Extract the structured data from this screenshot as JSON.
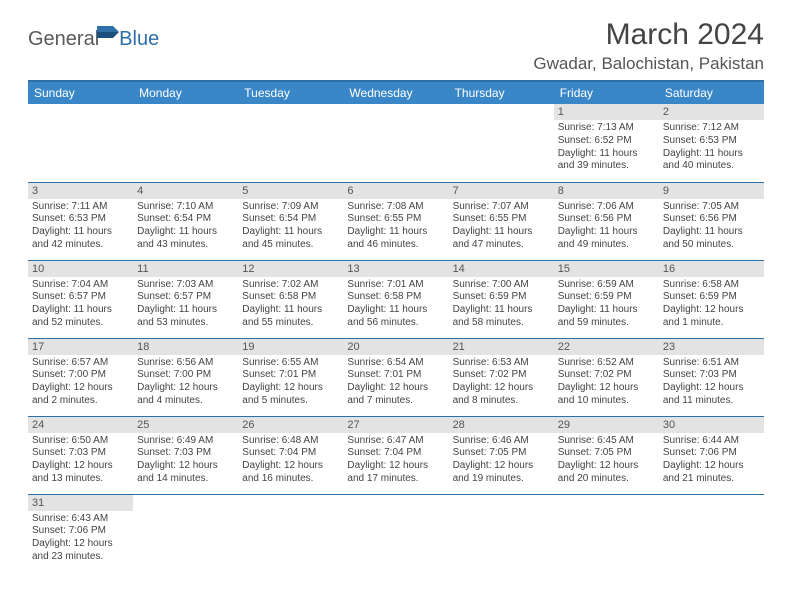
{
  "logo": {
    "part1": "General",
    "part2": "Blue"
  },
  "title": "March 2024",
  "location": "Gwadar, Balochistan, Pakistan",
  "colors": {
    "header_bg": "#3a87c8",
    "header_border": "#2f6fa8",
    "daynum_bg": "#e3e3e3",
    "text": "#444444",
    "logo_gray": "#5a5a5a",
    "logo_blue": "#2f6fa8"
  },
  "table": {
    "columns": [
      "Sunday",
      "Monday",
      "Tuesday",
      "Wednesday",
      "Thursday",
      "Friday",
      "Saturday"
    ],
    "column_width_pct": 14.28,
    "header_fontsize": 12,
    "cell_fontsize": 10,
    "rows": [
      [
        {
          "day": "",
          "sunrise": "",
          "sunset": "",
          "daylight": ""
        },
        {
          "day": "",
          "sunrise": "",
          "sunset": "",
          "daylight": ""
        },
        {
          "day": "",
          "sunrise": "",
          "sunset": "",
          "daylight": ""
        },
        {
          "day": "",
          "sunrise": "",
          "sunset": "",
          "daylight": ""
        },
        {
          "day": "",
          "sunrise": "",
          "sunset": "",
          "daylight": ""
        },
        {
          "day": "1",
          "sunrise": "Sunrise: 7:13 AM",
          "sunset": "Sunset: 6:52 PM",
          "daylight": "Daylight: 11 hours and 39 minutes."
        },
        {
          "day": "2",
          "sunrise": "Sunrise: 7:12 AM",
          "sunset": "Sunset: 6:53 PM",
          "daylight": "Daylight: 11 hours and 40 minutes."
        }
      ],
      [
        {
          "day": "3",
          "sunrise": "Sunrise: 7:11 AM",
          "sunset": "Sunset: 6:53 PM",
          "daylight": "Daylight: 11 hours and 42 minutes."
        },
        {
          "day": "4",
          "sunrise": "Sunrise: 7:10 AM",
          "sunset": "Sunset: 6:54 PM",
          "daylight": "Daylight: 11 hours and 43 minutes."
        },
        {
          "day": "5",
          "sunrise": "Sunrise: 7:09 AM",
          "sunset": "Sunset: 6:54 PM",
          "daylight": "Daylight: 11 hours and 45 minutes."
        },
        {
          "day": "6",
          "sunrise": "Sunrise: 7:08 AM",
          "sunset": "Sunset: 6:55 PM",
          "daylight": "Daylight: 11 hours and 46 minutes."
        },
        {
          "day": "7",
          "sunrise": "Sunrise: 7:07 AM",
          "sunset": "Sunset: 6:55 PM",
          "daylight": "Daylight: 11 hours and 47 minutes."
        },
        {
          "day": "8",
          "sunrise": "Sunrise: 7:06 AM",
          "sunset": "Sunset: 6:56 PM",
          "daylight": "Daylight: 11 hours and 49 minutes."
        },
        {
          "day": "9",
          "sunrise": "Sunrise: 7:05 AM",
          "sunset": "Sunset: 6:56 PM",
          "daylight": "Daylight: 11 hours and 50 minutes."
        }
      ],
      [
        {
          "day": "10",
          "sunrise": "Sunrise: 7:04 AM",
          "sunset": "Sunset: 6:57 PM",
          "daylight": "Daylight: 11 hours and 52 minutes."
        },
        {
          "day": "11",
          "sunrise": "Sunrise: 7:03 AM",
          "sunset": "Sunset: 6:57 PM",
          "daylight": "Daylight: 11 hours and 53 minutes."
        },
        {
          "day": "12",
          "sunrise": "Sunrise: 7:02 AM",
          "sunset": "Sunset: 6:58 PM",
          "daylight": "Daylight: 11 hours and 55 minutes."
        },
        {
          "day": "13",
          "sunrise": "Sunrise: 7:01 AM",
          "sunset": "Sunset: 6:58 PM",
          "daylight": "Daylight: 11 hours and 56 minutes."
        },
        {
          "day": "14",
          "sunrise": "Sunrise: 7:00 AM",
          "sunset": "Sunset: 6:59 PM",
          "daylight": "Daylight: 11 hours and 58 minutes."
        },
        {
          "day": "15",
          "sunrise": "Sunrise: 6:59 AM",
          "sunset": "Sunset: 6:59 PM",
          "daylight": "Daylight: 11 hours and 59 minutes."
        },
        {
          "day": "16",
          "sunrise": "Sunrise: 6:58 AM",
          "sunset": "Sunset: 6:59 PM",
          "daylight": "Daylight: 12 hours and 1 minute."
        }
      ],
      [
        {
          "day": "17",
          "sunrise": "Sunrise: 6:57 AM",
          "sunset": "Sunset: 7:00 PM",
          "daylight": "Daylight: 12 hours and 2 minutes."
        },
        {
          "day": "18",
          "sunrise": "Sunrise: 6:56 AM",
          "sunset": "Sunset: 7:00 PM",
          "daylight": "Daylight: 12 hours and 4 minutes."
        },
        {
          "day": "19",
          "sunrise": "Sunrise: 6:55 AM",
          "sunset": "Sunset: 7:01 PM",
          "daylight": "Daylight: 12 hours and 5 minutes."
        },
        {
          "day": "20",
          "sunrise": "Sunrise: 6:54 AM",
          "sunset": "Sunset: 7:01 PM",
          "daylight": "Daylight: 12 hours and 7 minutes."
        },
        {
          "day": "21",
          "sunrise": "Sunrise: 6:53 AM",
          "sunset": "Sunset: 7:02 PM",
          "daylight": "Daylight: 12 hours and 8 minutes."
        },
        {
          "day": "22",
          "sunrise": "Sunrise: 6:52 AM",
          "sunset": "Sunset: 7:02 PM",
          "daylight": "Daylight: 12 hours and 10 minutes."
        },
        {
          "day": "23",
          "sunrise": "Sunrise: 6:51 AM",
          "sunset": "Sunset: 7:03 PM",
          "daylight": "Daylight: 12 hours and 11 minutes."
        }
      ],
      [
        {
          "day": "24",
          "sunrise": "Sunrise: 6:50 AM",
          "sunset": "Sunset: 7:03 PM",
          "daylight": "Daylight: 12 hours and 13 minutes."
        },
        {
          "day": "25",
          "sunrise": "Sunrise: 6:49 AM",
          "sunset": "Sunset: 7:03 PM",
          "daylight": "Daylight: 12 hours and 14 minutes."
        },
        {
          "day": "26",
          "sunrise": "Sunrise: 6:48 AM",
          "sunset": "Sunset: 7:04 PM",
          "daylight": "Daylight: 12 hours and 16 minutes."
        },
        {
          "day": "27",
          "sunrise": "Sunrise: 6:47 AM",
          "sunset": "Sunset: 7:04 PM",
          "daylight": "Daylight: 12 hours and 17 minutes."
        },
        {
          "day": "28",
          "sunrise": "Sunrise: 6:46 AM",
          "sunset": "Sunset: 7:05 PM",
          "daylight": "Daylight: 12 hours and 19 minutes."
        },
        {
          "day": "29",
          "sunrise": "Sunrise: 6:45 AM",
          "sunset": "Sunset: 7:05 PM",
          "daylight": "Daylight: 12 hours and 20 minutes."
        },
        {
          "day": "30",
          "sunrise": "Sunrise: 6:44 AM",
          "sunset": "Sunset: 7:06 PM",
          "daylight": "Daylight: 12 hours and 21 minutes."
        }
      ],
      [
        {
          "day": "31",
          "sunrise": "Sunrise: 6:43 AM",
          "sunset": "Sunset: 7:06 PM",
          "daylight": "Daylight: 12 hours and 23 minutes."
        },
        {
          "day": "",
          "sunrise": "",
          "sunset": "",
          "daylight": ""
        },
        {
          "day": "",
          "sunrise": "",
          "sunset": "",
          "daylight": ""
        },
        {
          "day": "",
          "sunrise": "",
          "sunset": "",
          "daylight": ""
        },
        {
          "day": "",
          "sunrise": "",
          "sunset": "",
          "daylight": ""
        },
        {
          "day": "",
          "sunrise": "",
          "sunset": "",
          "daylight": ""
        },
        {
          "day": "",
          "sunrise": "",
          "sunset": "",
          "daylight": ""
        }
      ]
    ]
  }
}
